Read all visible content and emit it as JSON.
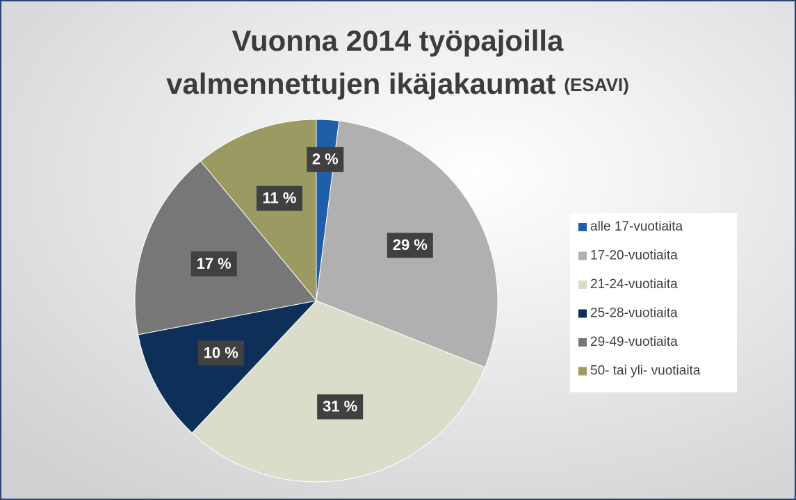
{
  "chart_data": {
    "type": "pie",
    "title": [
      "Vuonna 2014 työpajoilla",
      "valmennettujen ikäjakaumat"
    ],
    "title_note": "(ESAVI)",
    "categories": [
      "alle 17-vuotiaita",
      "17-20-vuotiaita",
      "21-24-vuotiaita",
      "25-28-vuotiaita",
      "29-49-vuotiaita",
      "50- tai yli- vuotiaita"
    ],
    "values": [
      2,
      29,
      31,
      10,
      17,
      11
    ],
    "value_labels": [
      "2 %",
      "29 %",
      "31 %",
      "10 %",
      "17 %",
      "11 %"
    ],
    "colors": [
      "#1f5ea8",
      "#b0b0b0",
      "#dcdccb",
      "#0e2f57",
      "#777777",
      "#9a9a62"
    ],
    "legend": "right"
  }
}
